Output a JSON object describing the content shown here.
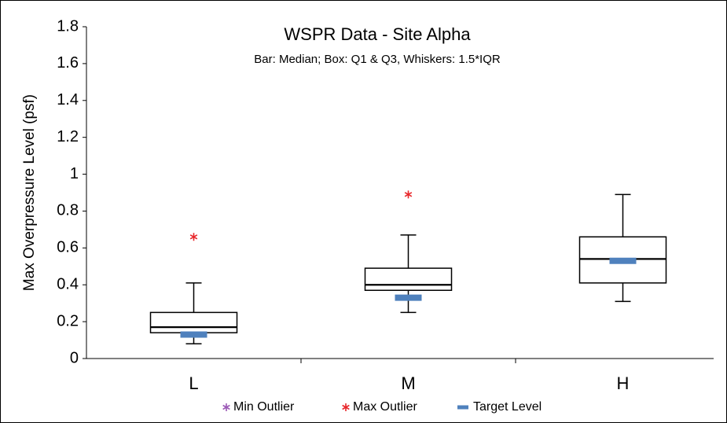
{
  "chart_data": {
    "type": "box",
    "title": "WSPR Data - Site Alpha",
    "subtitle": "Bar: Median; Box: Q1 & Q3, Whiskers: 1.5*IQR",
    "y_label": "Max Overpressure Level (psf)",
    "categories": [
      "L",
      "M",
      "H"
    ],
    "boxes": {
      "whisker_low": [
        0.08,
        0.25,
        0.31
      ],
      "q1": [
        0.14,
        0.37,
        0.41
      ],
      "median": [
        0.17,
        0.4,
        0.54
      ],
      "q3": [
        0.25,
        0.49,
        0.66
      ],
      "whisker_high": [
        0.41,
        0.67,
        0.89
      ]
    },
    "series": [
      {
        "name": "Min Outlier",
        "color": "#9b59b6",
        "values": [
          null,
          null,
          null
        ]
      },
      {
        "name": "Max Outlier",
        "color": "#e8262a",
        "values": [
          0.66,
          0.89,
          null
        ]
      },
      {
        "name": "Target Level",
        "color": "#4f81bd",
        "values": [
          0.13,
          0.33,
          0.53
        ]
      }
    ],
    "ylim": [
      0,
      1.8
    ],
    "yticks": [
      0,
      0.2,
      0.4,
      0.6,
      0.8,
      1,
      1.2,
      1.4,
      1.6,
      1.8
    ]
  }
}
